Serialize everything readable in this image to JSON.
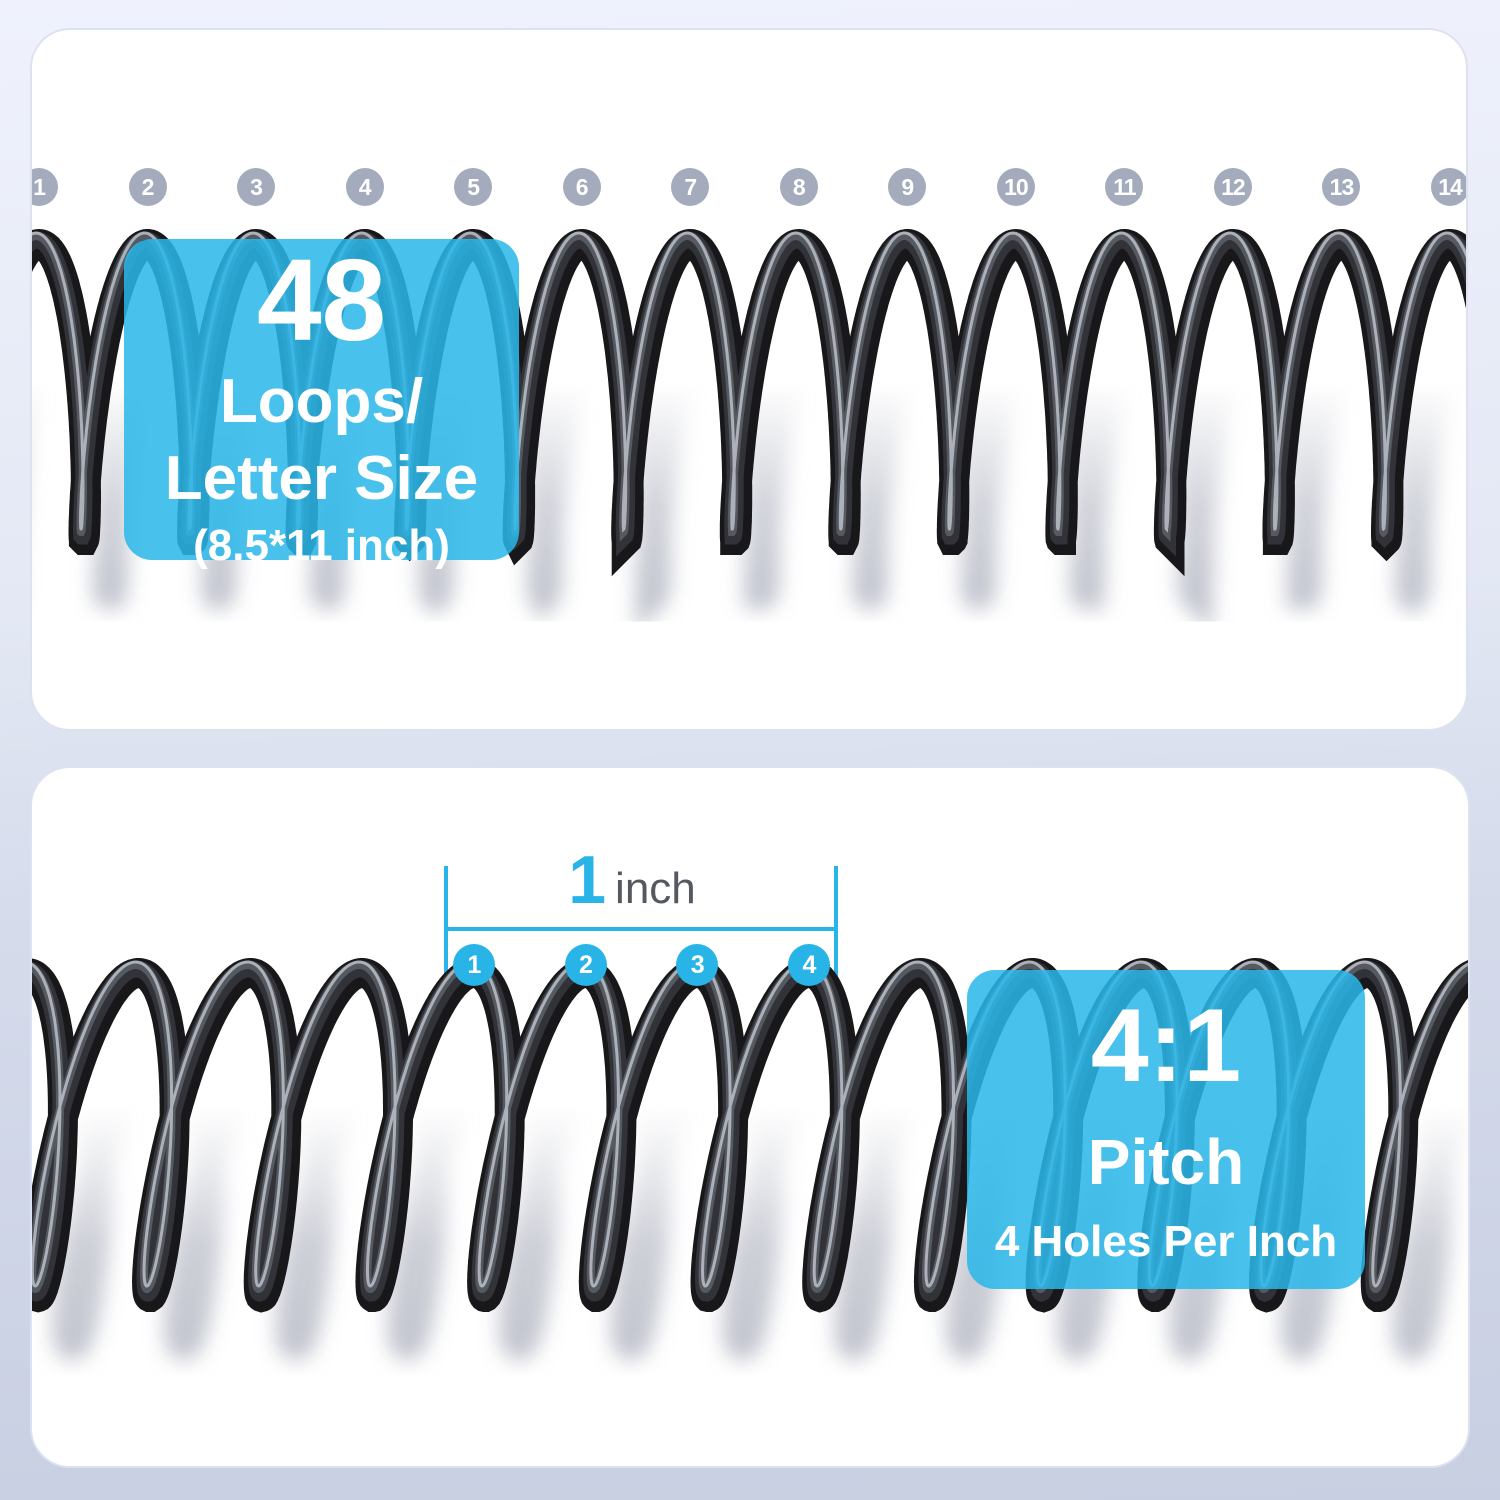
{
  "colors": {
    "accent": "#29b4e8",
    "badge_fill": "rgba(42,183,233,0.86)",
    "marker_gray": "#a3abbc",
    "coil": "#18181a",
    "unit_text": "#54585f"
  },
  "top_panel": {
    "hole_numbers": [
      "1",
      "2",
      "3",
      "4",
      "5",
      "6",
      "7",
      "8",
      "9",
      "10",
      "11",
      "12",
      "13",
      "14"
    ],
    "badge": {
      "value": "48",
      "line1": "Loops/",
      "line2": "Letter Size",
      "line3": "(8.5*11 inch)"
    }
  },
  "bottom_panel": {
    "ruler": {
      "value": "1",
      "unit": "inch"
    },
    "hole_numbers": [
      "1",
      "2",
      "3",
      "4"
    ],
    "badge": {
      "value": "4:1",
      "line1": "Pitch",
      "line2": "4 Holes Per Inch"
    }
  }
}
